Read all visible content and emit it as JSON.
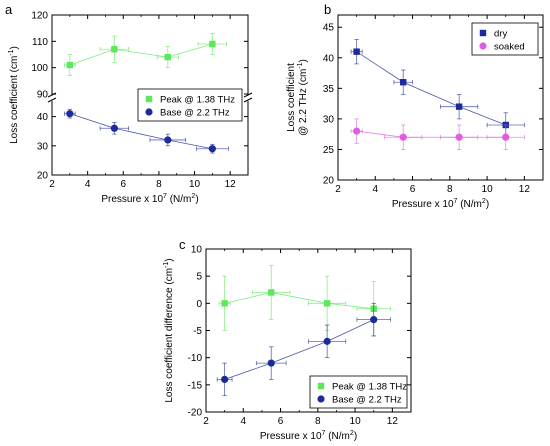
{
  "chart_data": [
    {
      "panel": "a",
      "type": "scatter",
      "xlabel": "Pressure x 10",
      "xlabel_sup": "7",
      "xlabel_unit": " (N/m",
      "xlabel_unit_sup": "2",
      "xlabel_close": ")",
      "ylabel": "Loss coefficient (cm",
      "ylabel_sup": "-1",
      "ylabel_close": ")",
      "xlim": [
        2,
        13
      ],
      "xticks": [
        "2",
        "4",
        "6",
        "8",
        "10",
        "12"
      ],
      "ylim_upper": [
        90,
        120
      ],
      "yticks_upper": [
        "90",
        "100",
        "110",
        "120"
      ],
      "ylim_lower": [
        20,
        45
      ],
      "yticks_lower": [
        "20",
        "30",
        "40"
      ],
      "legend_position": "center-right",
      "series": [
        {
          "name": "Peak @ 1.38 THz",
          "color": "#5be85b",
          "marker": "square",
          "axis": "upper",
          "x": [
            3,
            5.5,
            8.5,
            11
          ],
          "y": [
            101,
            107,
            104,
            109
          ],
          "xerr": [
            0.3,
            0.8,
            0.6,
            0.8
          ],
          "yerr": [
            4,
            5,
            4,
            4
          ]
        },
        {
          "name": "Base @ 2.2 THz",
          "color": "#1c2a9a",
          "marker": "circle",
          "axis": "lower",
          "x": [
            3,
            5.5,
            8.5,
            11
          ],
          "y": [
            41,
            36,
            32,
            29
          ],
          "xerr": [
            0.3,
            0.8,
            1,
            0.9
          ],
          "yerr": [
            1.5,
            2,
            2,
            1.5
          ]
        }
      ]
    },
    {
      "panel": "b",
      "type": "scatter",
      "xlabel": "Pressure x 10",
      "xlabel_sup": "7",
      "xlabel_unit": " (N/m",
      "xlabel_unit_sup": "2",
      "xlabel_close": ")",
      "ylabel_line1": "Loss coefficient",
      "ylabel_line2": "@ 2.2 THz (cm",
      "ylabel_sup": "-1",
      "ylabel_close": ")",
      "xlim": [
        2,
        13
      ],
      "xticks": [
        "2",
        "4",
        "6",
        "8",
        "10",
        "12"
      ],
      "ylim": [
        20,
        47
      ],
      "yticks": [
        "20",
        "25",
        "30",
        "35",
        "40",
        "45"
      ],
      "legend_position": "top-right",
      "series": [
        {
          "name": "dry",
          "color": "#1c2a9a",
          "marker": "square",
          "x": [
            3,
            5.5,
            8.5,
            11
          ],
          "y": [
            41,
            36,
            32,
            29
          ],
          "xerr": [
            0.3,
            0.5,
            1,
            1
          ],
          "yerr": [
            2,
            2,
            2,
            2
          ]
        },
        {
          "name": "soaked",
          "color": "#e05ce0",
          "marker": "circle",
          "x": [
            3,
            5.5,
            8.5,
            11
          ],
          "y": [
            28,
            27,
            27,
            27
          ],
          "xerr": [
            0.3,
            1,
            1,
            1
          ],
          "yerr": [
            2,
            2,
            2,
            2
          ]
        }
      ]
    },
    {
      "panel": "c",
      "type": "scatter",
      "xlabel": "Pressure x 10",
      "xlabel_sup": "7",
      "xlabel_unit": " (N/m",
      "xlabel_unit_sup": "2",
      "xlabel_close": ")",
      "ylabel": "Loss coefficient difference (cm",
      "ylabel_sup": "-1",
      "ylabel_close": ")",
      "xlim": [
        2,
        13
      ],
      "xticks": [
        "2",
        "4",
        "6",
        "8",
        "10",
        "12"
      ],
      "ylim": [
        -20,
        10
      ],
      "yticks": [
        "-20",
        "-15",
        "-10",
        "-5",
        "0",
        "5",
        "10"
      ],
      "legend_position": "bottom-right",
      "series": [
        {
          "name": "Peak @ 1.38 THz",
          "color": "#5be85b",
          "marker": "square",
          "x": [
            3,
            5.5,
            8.5,
            11
          ],
          "y": [
            0,
            2,
            0,
            -1
          ],
          "xerr": [
            0.3,
            1,
            1,
            0.9
          ],
          "yerr": [
            5,
            5,
            5,
            5
          ]
        },
        {
          "name": "Base @ 2.2 THz",
          "color": "#1c2a9a",
          "marker": "circle",
          "x": [
            3,
            5.5,
            8.5,
            11
          ],
          "y": [
            -14,
            -11,
            -7,
            -3
          ],
          "xerr": [
            0.4,
            0.8,
            1,
            0.9
          ],
          "yerr": [
            3,
            3,
            3,
            3
          ]
        }
      ]
    }
  ]
}
